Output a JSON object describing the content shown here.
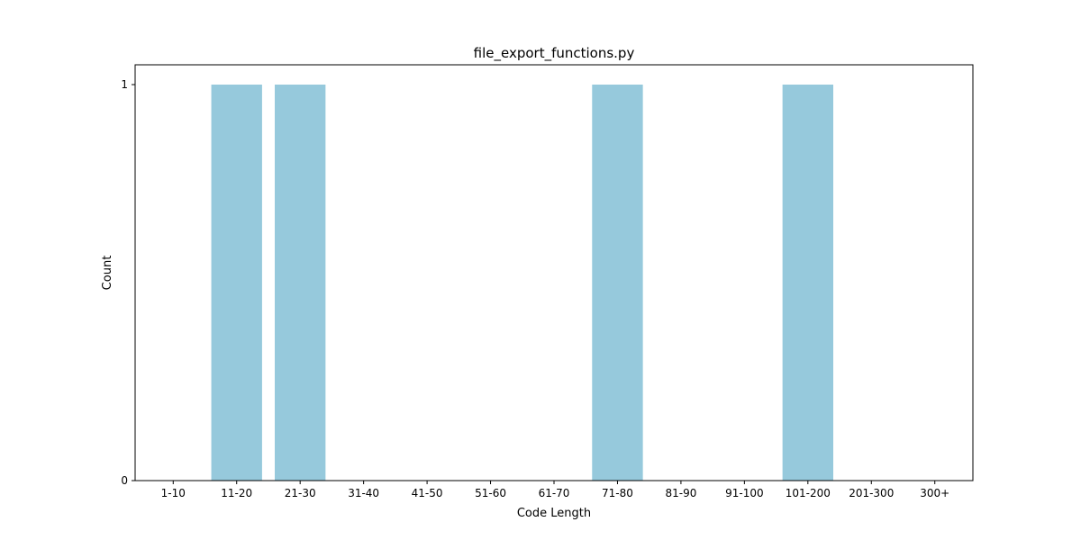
{
  "chart_data": {
    "type": "bar",
    "title": "file_export_functions.py",
    "xlabel": "Code Length",
    "ylabel": "Count",
    "categories": [
      "1-10",
      "11-20",
      "21-30",
      "31-40",
      "41-50",
      "51-60",
      "61-70",
      "71-80",
      "81-90",
      "91-100",
      "101-200",
      "201-300",
      "300+"
    ],
    "values": [
      0,
      1,
      1,
      0,
      0,
      0,
      0,
      1,
      0,
      0,
      1,
      0,
      0
    ],
    "yticks": [
      0,
      1
    ],
    "ylim": [
      0,
      1
    ],
    "bar_color": "#96c9dc",
    "grid": false,
    "legend": "none"
  }
}
